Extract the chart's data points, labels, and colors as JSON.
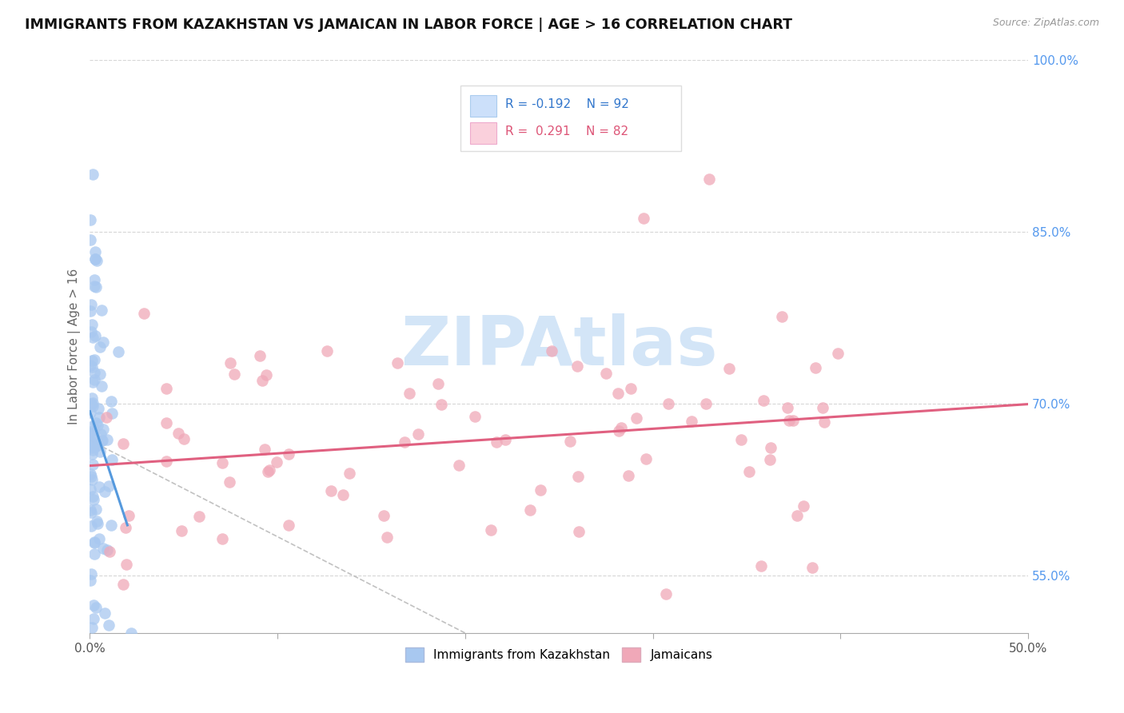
{
  "title": "IMMIGRANTS FROM KAZAKHSTAN VS JAMAICAN IN LABOR FORCE | AGE > 16 CORRELATION CHART",
  "source": "Source: ZipAtlas.com",
  "ylabel": "In Labor Force | Age > 16",
  "xlim": [
    0.0,
    0.5
  ],
  "ylim": [
    0.5,
    1.0
  ],
  "right_yticks": [
    0.55,
    0.7,
    0.85,
    1.0
  ],
  "right_yticklabels": [
    "55.0%",
    "70.0%",
    "85.0%",
    "100.0%"
  ],
  "kazakhstan_R": -0.192,
  "kazakhstan_N": 92,
  "jamaican_R": 0.291,
  "jamaican_N": 82,
  "kazakhstan_color": "#a8c8f0",
  "jamaican_color": "#f0a8b8",
  "kazakhstan_trend_color": "#5599dd",
  "jamaican_trend_color": "#e06080",
  "background_color": "#ffffff",
  "grid_color": "#cccccc",
  "legend_box_color_kaz": "#cce0fa",
  "legend_box_color_jam": "#fad0dc",
  "watermark_color": "#c8dff5"
}
